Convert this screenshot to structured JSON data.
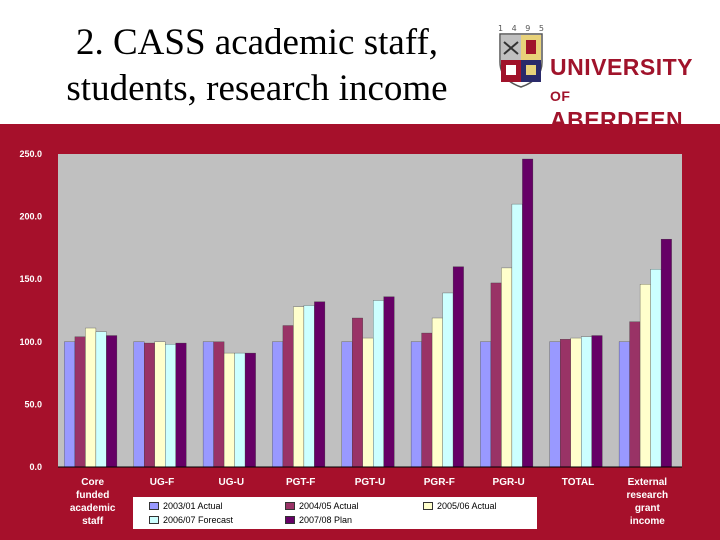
{
  "slide": {
    "title_line1": "2.  CASS academic staff,",
    "title_line2": "students, research income"
  },
  "logo": {
    "years": "1 4 9 5",
    "name_line1": "UNIVERSITY",
    "name_of": "OF",
    "name_line2": "ABERDEEN",
    "color": "#a0132b"
  },
  "chart_data": {
    "type": "bar",
    "categories": [
      [
        "Core",
        "funded",
        "academic",
        "staff"
      ],
      [
        "UG-F"
      ],
      [
        "UG-U"
      ],
      [
        "PGT-F"
      ],
      [
        "PGT-U"
      ],
      [
        "PGR-F"
      ],
      [
        "PGR-U"
      ],
      [
        "TOTAL"
      ],
      [
        "External",
        "research",
        "grant",
        "income"
      ]
    ],
    "ylim": [
      0,
      250
    ],
    "yticks": [
      "0.0",
      "50.0",
      "100.0",
      "150.0",
      "200.0",
      "250.0"
    ],
    "grid": false,
    "legend_position": "bottom",
    "series": [
      {
        "name": "2003/01 Actual",
        "color": "#9999ff",
        "values": [
          100,
          100,
          100,
          100,
          100,
          100,
          100,
          100,
          100
        ]
      },
      {
        "name": "2004/05 Actual",
        "color": "#993366",
        "values": [
          104,
          99,
          100,
          113,
          119,
          107,
          147,
          102,
          116
        ]
      },
      {
        "name": "2005/06 Actual",
        "color": "#ffffcc",
        "values": [
          111,
          100,
          91,
          128,
          103,
          119,
          159,
          103,
          146
        ]
      },
      {
        "name": "2006/07 Forecast",
        "color": "#ccffff",
        "values": [
          108,
          98,
          91,
          129,
          133,
          139,
          210,
          104,
          158
        ]
      },
      {
        "name": "2007/08 Plan",
        "color": "#660066",
        "values": [
          105,
          99,
          91,
          132,
          136,
          160,
          246,
          105,
          182
        ]
      }
    ]
  }
}
